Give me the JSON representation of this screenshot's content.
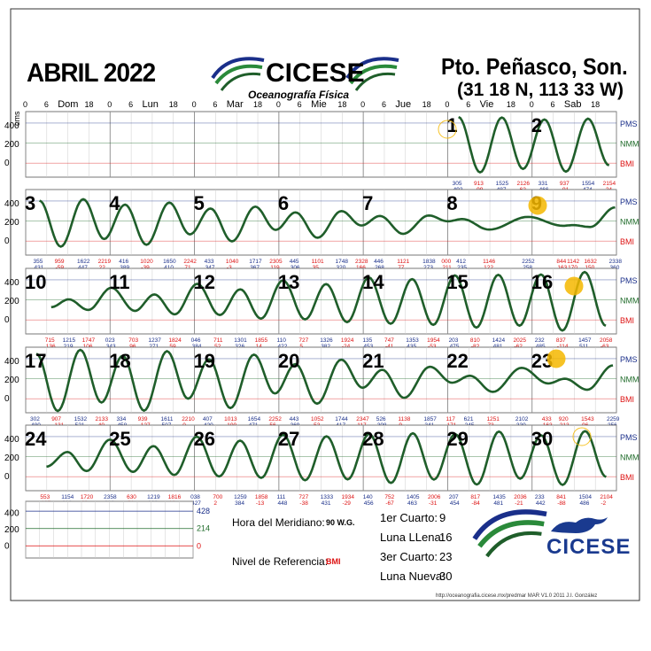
{
  "header": {
    "title": "ABRIL 2022",
    "org": "CICESE",
    "dept": "Oceanografía Física",
    "location": "Pto. Peñasco, Son.",
    "coords": "(31 18 N, 113 33 W)"
  },
  "axis": {
    "unit": "cms",
    "hour_ticks": [
      "0",
      "6",
      "18",
      "0",
      "6",
      "18",
      "0",
      "6",
      "18",
      "0",
      "6",
      "18",
      "0",
      "6",
      "18",
      "0",
      "6",
      "18",
      "0",
      "6",
      "18"
    ],
    "days": [
      "Dom",
      "Lun",
      "Mar",
      "Mie",
      "Jue",
      "Vie",
      "Sab"
    ],
    "y_ticks": [
      "400",
      "200",
      "0"
    ],
    "levels": [
      "PMS",
      "NMM",
      "BMI"
    ]
  },
  "chart_data": {
    "type": "line",
    "xlabel": "",
    "ylabel": "cms",
    "ylim": [
      -150,
      550
    ],
    "rows": [
      {
        "days": [
          1,
          2
        ],
        "start_day": 1,
        "extrema": [
          [
            "0200",
            0
          ],
          [
            "305",
            492
          ],
          [
            "913",
            -99
          ],
          [
            "1525",
            487
          ],
          [
            "2126",
            -62
          ],
          [
            "331",
            466
          ],
          [
            "937",
            -91
          ],
          [
            "1554",
            474
          ],
          [
            "2154",
            -24
          ]
        ]
      },
      {
        "days": [
          3,
          4,
          5,
          6,
          7,
          8,
          9
        ],
        "start_day": 3,
        "extrema": [
          [
            "355",
            431
          ],
          [
            "959",
            -59
          ],
          [
            "1622",
            447
          ],
          [
            "2219",
            22
          ],
          [
            "416",
            389
          ],
          [
            "1020",
            -39
          ],
          [
            "1650",
            410
          ],
          [
            "2242",
            71
          ],
          [
            "433",
            347
          ],
          [
            "1040",
            -3
          ],
          [
            "1717",
            367
          ],
          [
            "2305",
            119
          ],
          [
            "445",
            306
          ],
          [
            "1101",
            35
          ],
          [
            "1748",
            320
          ],
          [
            "2328",
            166
          ],
          [
            "446",
            268
          ],
          [
            "1121",
            77
          ],
          [
            "1838",
            273
          ],
          [
            "000",
            211
          ],
          [
            "412",
            235
          ],
          [
            "1146",
            122
          ],
          [
            "2252",
            258
          ],
          [
            "844",
            163
          ],
          [
            "1142",
            170
          ],
          [
            "1632",
            150
          ],
          [
            "2338",
            360
          ]
        ]
      },
      {
        "days": [
          10,
          11,
          12,
          13,
          14,
          15,
          16
        ],
        "start_day": 10,
        "extrema": [
          [
            "715",
            136
          ],
          [
            "1215",
            219
          ],
          [
            "1747",
            106
          ],
          [
            "023",
            343
          ],
          [
            "703",
            96
          ],
          [
            "1237",
            271
          ],
          [
            "1824",
            59
          ],
          [
            "046",
            384
          ],
          [
            "711",
            52
          ],
          [
            "1301",
            326
          ],
          [
            "1855",
            14
          ],
          [
            "110",
            422
          ],
          [
            "727",
            5
          ],
          [
            "1326",
            382
          ],
          [
            "1924",
            -24
          ],
          [
            "135",
            453
          ],
          [
            "747",
            -41
          ],
          [
            "1353",
            435
          ],
          [
            "1954",
            -53
          ],
          [
            "203",
            475
          ],
          [
            "810",
            -82
          ],
          [
            "1424",
            481
          ],
          [
            "2025",
            -62
          ],
          [
            "232",
            485
          ],
          [
            "837",
            -114
          ],
          [
            "1457",
            511
          ],
          [
            "2058",
            -63
          ]
        ]
      },
      {
        "days": [
          17,
          18,
          19,
          20,
          21,
          22,
          23
        ],
        "start_day": 17,
        "extrema": [
          [
            "302",
            480
          ],
          [
            "907",
            -131
          ],
          [
            "1532",
            521
          ],
          [
            "2133",
            -40
          ],
          [
            "334",
            458
          ],
          [
            "939",
            -127
          ],
          [
            "1611",
            507
          ],
          [
            "2210",
            0
          ],
          [
            "407",
            420
          ],
          [
            "1013",
            -100
          ],
          [
            "1654",
            471
          ],
          [
            "2252",
            56
          ],
          [
            "443",
            369
          ],
          [
            "1052",
            -53
          ],
          [
            "1744",
            417
          ],
          [
            "2347",
            117
          ],
          [
            "526",
            308
          ],
          [
            "1138",
            9
          ],
          [
            "1857",
            341
          ],
          [
            "117",
            171
          ],
          [
            "621",
            245
          ],
          [
            "1251",
            73
          ],
          [
            "2102",
            330
          ],
          [
            "433",
            163
          ],
          [
            "920",
            213
          ],
          [
            "1543",
            96
          ],
          [
            "2259",
            356
          ]
        ]
      },
      {
        "days": [
          24,
          25,
          26,
          27,
          28,
          29,
          30
        ],
        "start_day": 24,
        "extrema": [
          [
            "553",
            107
          ],
          [
            "1154",
            263
          ],
          [
            "1720",
            60
          ],
          [
            "2358",
            396
          ],
          [
            "630",
            51
          ],
          [
            "1219",
            326
          ],
          [
            "1816",
            18
          ],
          [
            "038",
            427
          ],
          [
            "700",
            2
          ],
          [
            "1259",
            384
          ],
          [
            "1858",
            -13
          ],
          [
            "111",
            448
          ],
          [
            "727",
            -38
          ],
          [
            "1333",
            431
          ],
          [
            "1934",
            -29
          ],
          [
            "140",
            456
          ],
          [
            "752",
            -67
          ],
          [
            "1405",
            463
          ],
          [
            "2006",
            -31
          ],
          [
            "207",
            454
          ],
          [
            "817",
            -84
          ],
          [
            "1435",
            481
          ],
          [
            "2036",
            -21
          ],
          [
            "233",
            442
          ],
          [
            "841",
            -88
          ],
          [
            "1504",
            486
          ],
          [
            "2104",
            -2
          ]
        ]
      }
    ]
  },
  "legend_box": {
    "ticks": [
      "400",
      "200",
      "0"
    ],
    "levels": [
      "428",
      "214",
      "0"
    ]
  },
  "meridian": {
    "label": "Hora del Meridiano:",
    "value": "90 W.G."
  },
  "reference": {
    "label": "Nivel de Referencia:",
    "value": "BMI"
  },
  "moon": [
    {
      "label": "1er Cuarto:",
      "value": "9"
    },
    {
      "label": "Luna LLena:",
      "value": "16"
    },
    {
      "label": "3er Cuarto:",
      "value": "23"
    },
    {
      "label": "Luna Nueva:",
      "value": "30"
    }
  ],
  "footer": {
    "url": "http://oceanografia.cicese.mx/predmar  MAR V1.0 2011 J.I. González",
    "logo": "CICESE"
  },
  "colors": {
    "curve": "#1f5e2a",
    "pms": "#1a2f8a",
    "nmm": "#1f6b2a",
    "bmi": "#d11",
    "high": "#1a2f8a",
    "low": "#d11",
    "sun": "#f5b800"
  }
}
